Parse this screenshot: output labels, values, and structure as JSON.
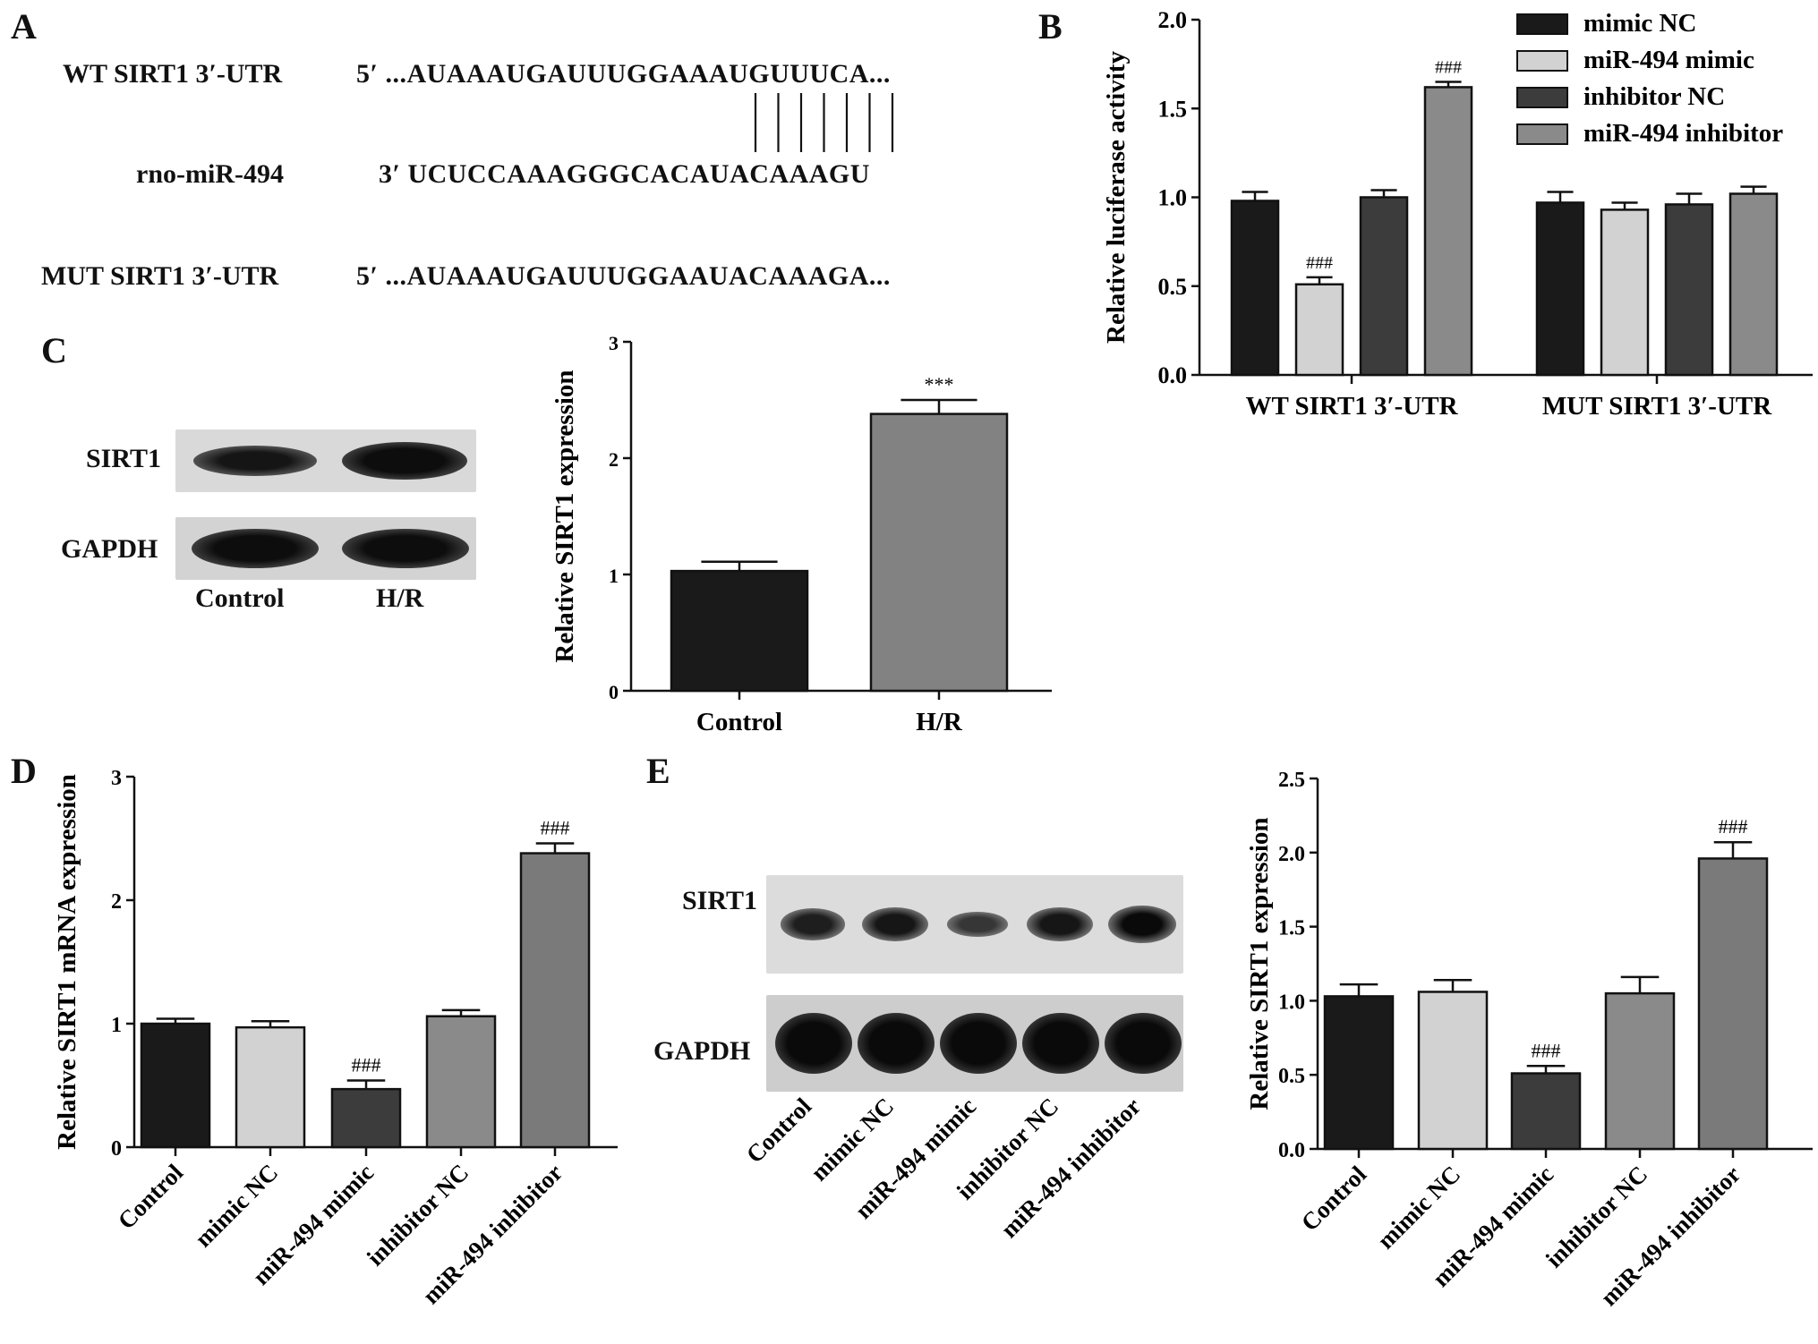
{
  "panels": {
    "a": {
      "letter": "A",
      "wt_label": "WT SIRT1 3′-UTR",
      "wt_seq": "5′ ...AUAAAUGAUUUGGAAAUGUUUCA...",
      "mir_label": "rno-miR-494",
      "mir_seq": "3′ UCUCCAAAGGGCACAUACAAAGU",
      "mut_label": "MUT SIRT1 3′-UTR",
      "mut_seq": "5′ ...AUAAAUGAUUUGGAAUACAAAGA...",
      "pairing_lines": 7
    },
    "b": {
      "letter": "B"
    },
    "c": {
      "letter": "C",
      "blot_rows": [
        "SIRT1",
        "GAPDH"
      ],
      "blot_lanes": [
        "Control",
        "H/R"
      ]
    },
    "d": {
      "letter": "D"
    },
    "e": {
      "letter": "E",
      "blot_rows": [
        "SIRT1",
        "GAPDH"
      ],
      "blot_lanes": [
        "Control",
        "mimic NC",
        "miR-494 mimic",
        "inhibitor NC",
        "miR-494 inhibitor"
      ],
      "sirt1_band_intensity": [
        0.75,
        0.85,
        0.45,
        0.85,
        1.0
      ]
    }
  },
  "colors": {
    "black": "#1a1a1a",
    "light_gray": "#d2d2d2",
    "dark_gray": "#3c3c3c",
    "mid_gray": "#8a8a8a",
    "mid_gray2": "#7a7a7a",
    "gray_hr": "#828282"
  },
  "chart_data": [
    {
      "panel": "B",
      "type": "bar",
      "categories": [
        "WT SIRT1 3′-UTR",
        "MUT SIRT1 3′-UTR"
      ],
      "series": [
        {
          "name": "mimic NC",
          "values": [
            0.98,
            0.97
          ],
          "errors": [
            0.05,
            0.06
          ],
          "color": "#1a1a1a"
        },
        {
          "name": "miR-494 mimic",
          "values": [
            0.51,
            0.93
          ],
          "errors": [
            0.04,
            0.04
          ],
          "color": "#d2d2d2"
        },
        {
          "name": "inhibitor NC",
          "values": [
            1.0,
            0.96
          ],
          "errors": [
            0.04,
            0.06
          ],
          "color": "#3c3c3c"
        },
        {
          "name": "miR-494 inhibitor",
          "values": [
            1.62,
            1.02
          ],
          "errors": [
            0.03,
            0.04
          ],
          "color": "#8a8a8a"
        }
      ],
      "annotations": [
        {
          "category": 0,
          "series": 1,
          "text": "###"
        },
        {
          "category": 0,
          "series": 3,
          "text": "###"
        }
      ],
      "ylabel": "Relative luciferase activity",
      "ylim": [
        0,
        2.0
      ],
      "yticks": [
        "0.0",
        "0.5",
        "1.0",
        "1.5",
        "2.0"
      ],
      "legend": "top-right"
    },
    {
      "panel": "C",
      "type": "bar",
      "categories": [
        "Control",
        "H/R"
      ],
      "values": [
        1.03,
        2.38
      ],
      "errors": [
        0.08,
        0.12
      ],
      "colors": [
        "#1a1a1a",
        "#828282"
      ],
      "annotations": [
        {
          "index": 1,
          "text": "***"
        }
      ],
      "ylabel": "Relative SIRT1 expression",
      "ylim": [
        0,
        3
      ],
      "yticks": [
        "0",
        "1",
        "2",
        "3"
      ]
    },
    {
      "panel": "D",
      "type": "bar",
      "categories": [
        "Control",
        "mimic NC",
        "miR-494 mimic",
        "inhibitor NC",
        "miR-494 inhibitor"
      ],
      "values": [
        1.0,
        0.97,
        0.47,
        1.06,
        2.38
      ],
      "errors": [
        0.04,
        0.05,
        0.07,
        0.05,
        0.08
      ],
      "colors": [
        "#1a1a1a",
        "#d2d2d2",
        "#3c3c3c",
        "#8a8a8a",
        "#7a7a7a"
      ],
      "annotations": [
        {
          "index": 2,
          "text": "###"
        },
        {
          "index": 4,
          "text": "###"
        }
      ],
      "ylabel": "Relative SIRT1 mRNA expression",
      "ylim": [
        0,
        3
      ],
      "yticks": [
        "0",
        "1",
        "2",
        "3"
      ]
    },
    {
      "panel": "E",
      "type": "bar",
      "categories": [
        "Control",
        "mimic NC",
        "miR-494 mimic",
        "inhibitor NC",
        "miR-494 inhibitor"
      ],
      "values": [
        1.03,
        1.06,
        0.51,
        1.05,
        1.96
      ],
      "errors": [
        0.08,
        0.08,
        0.05,
        0.11,
        0.11
      ],
      "colors": [
        "#1a1a1a",
        "#d2d2d2",
        "#3c3c3c",
        "#8a8a8a",
        "#7a7a7a"
      ],
      "annotations": [
        {
          "index": 2,
          "text": "###"
        },
        {
          "index": 4,
          "text": "###"
        }
      ],
      "ylabel": "Relative SIRT1 expression",
      "ylim": [
        0,
        2.5
      ],
      "yticks": [
        "0.0",
        "0.5",
        "1.0",
        "1.5",
        "2.0",
        "2.5"
      ]
    }
  ]
}
